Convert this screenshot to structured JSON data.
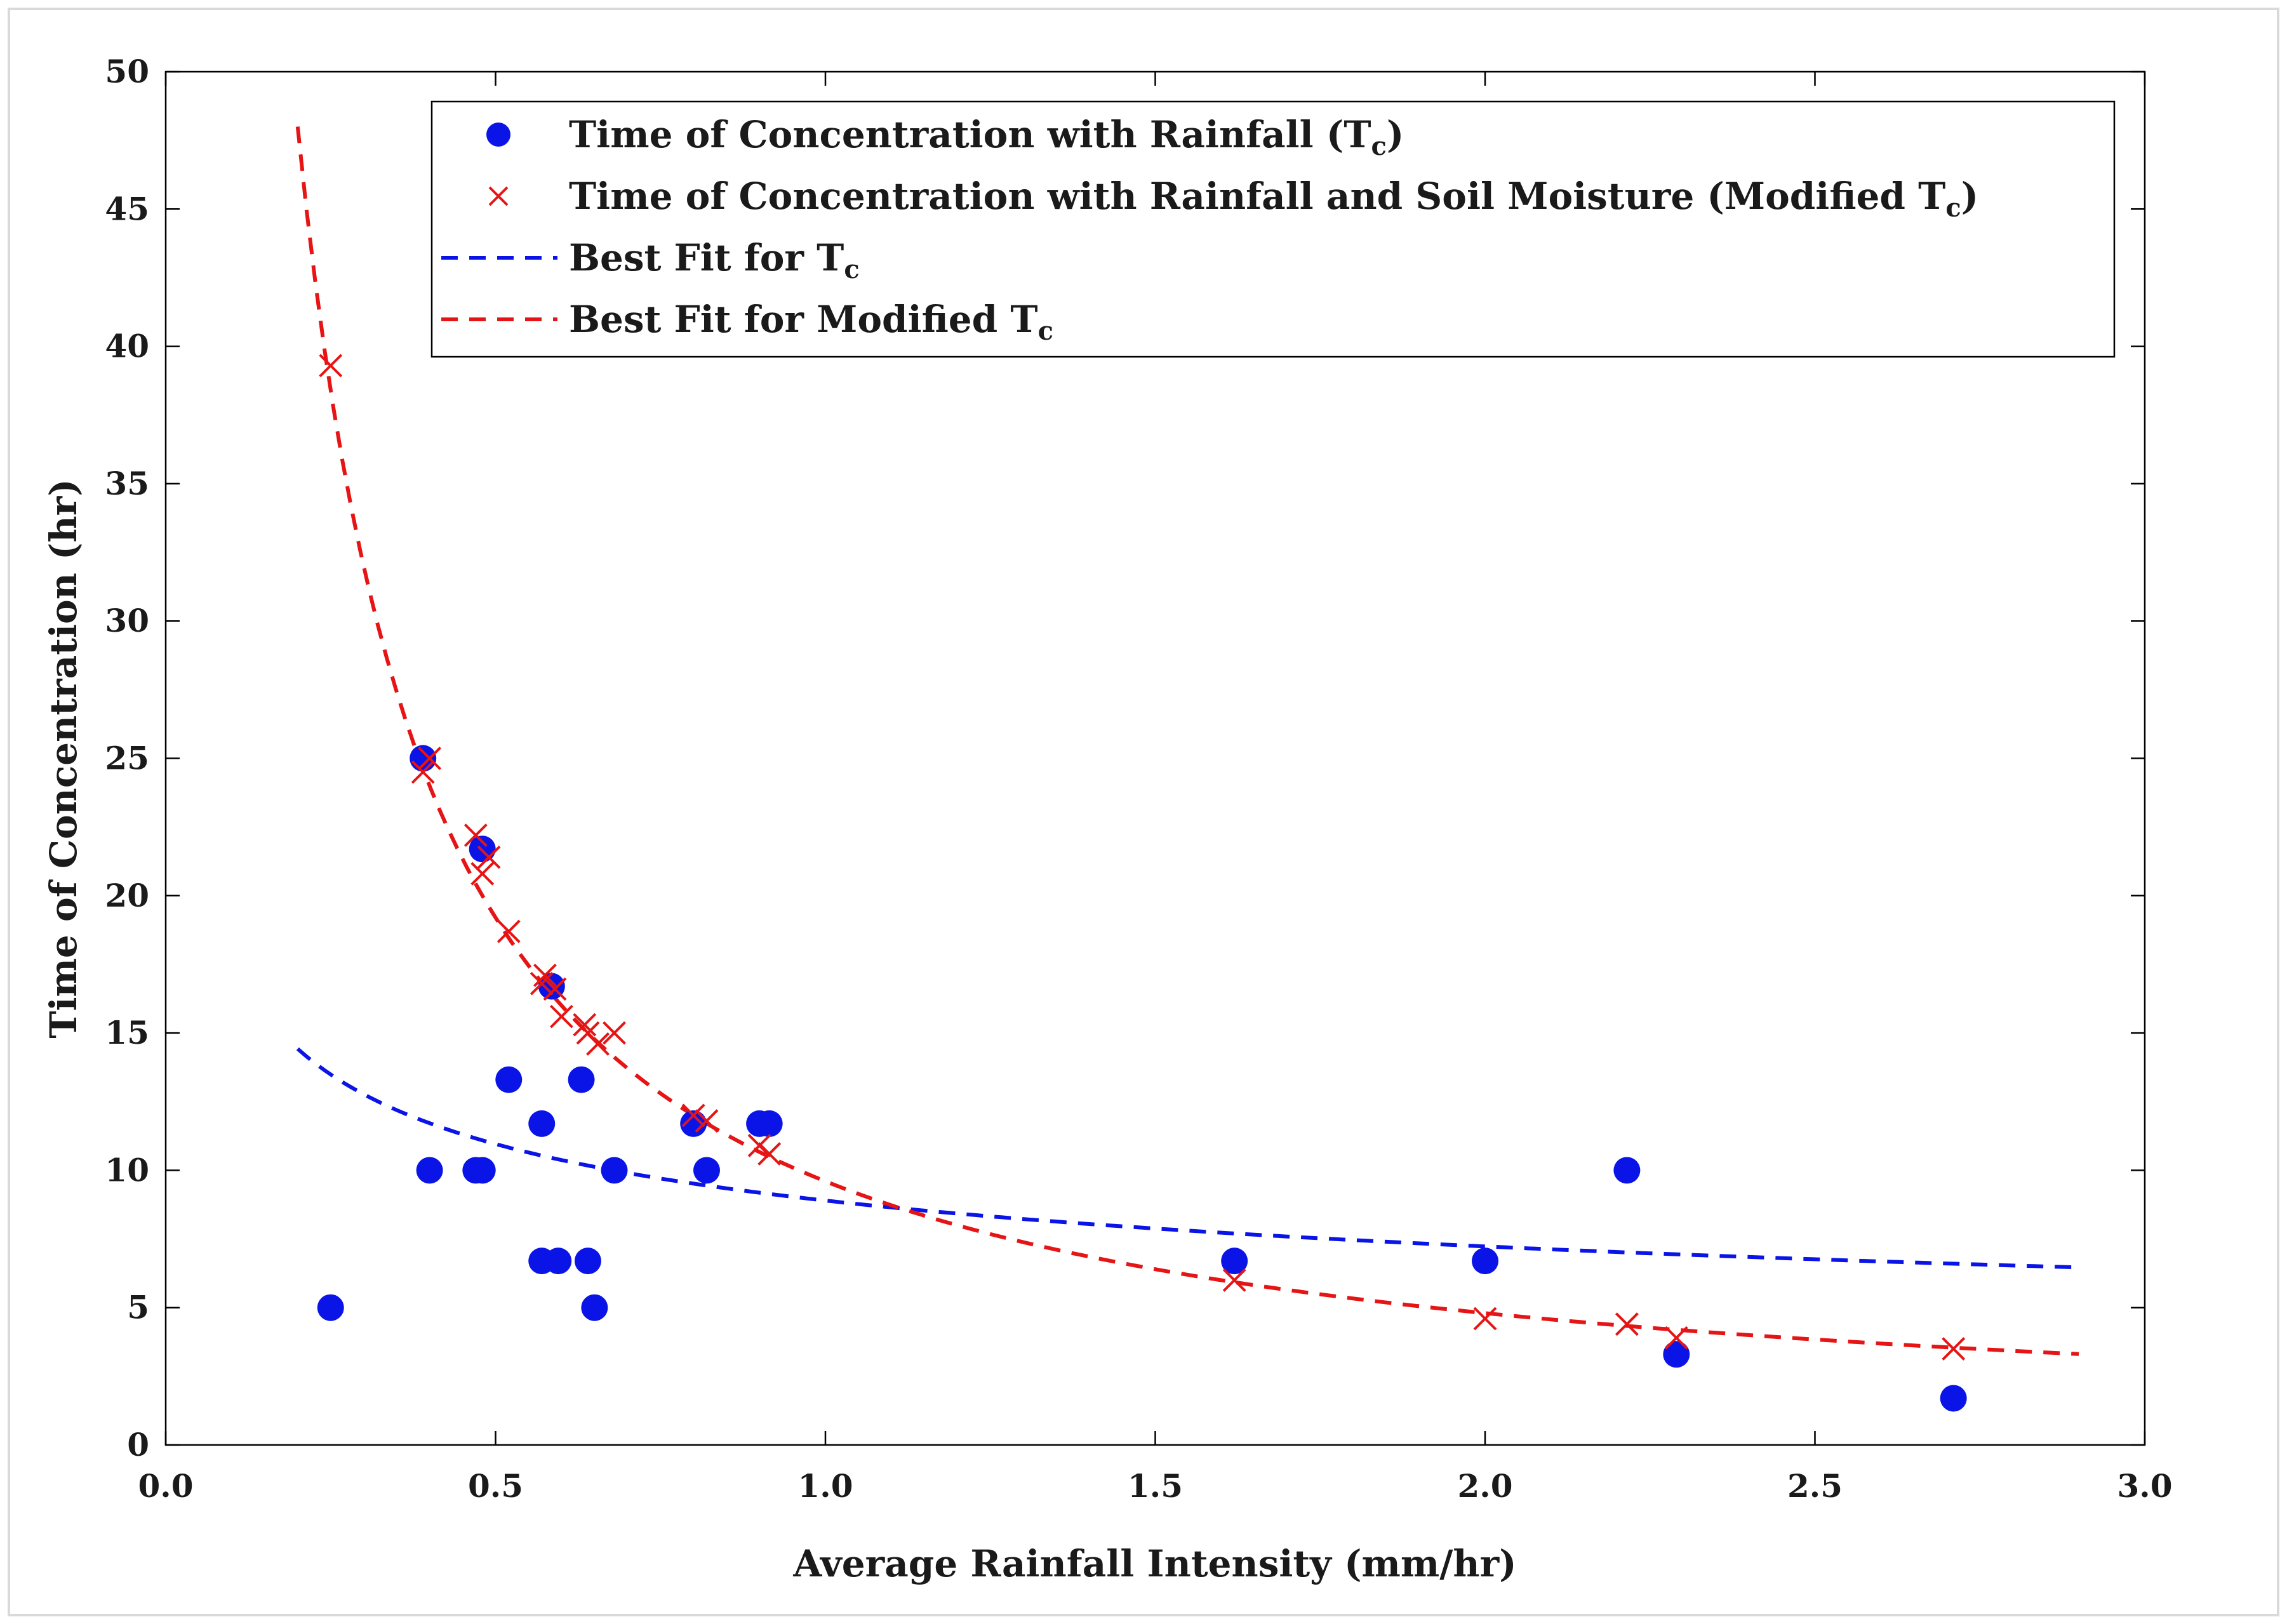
{
  "chart_data": {
    "type": "scatter",
    "title": "",
    "xlabel": "Average Rainfall Intensity (mm/hr)",
    "ylabel": "Time of Concentration (hr)",
    "xlim": [
      0.0,
      3.0
    ],
    "ylim": [
      0,
      50
    ],
    "xticks": [
      "0.0",
      "0.5",
      "1.0",
      "1.5",
      "2.0",
      "2.5",
      "3.0"
    ],
    "yticks": [
      "0",
      "5",
      "10",
      "15",
      "20",
      "25",
      "30",
      "35",
      "40",
      "45",
      "50"
    ],
    "grid": false,
    "legend_position": "top-right",
    "colors": {
      "tc": "#0a14e6",
      "modified": "#e61414"
    },
    "series": [
      {
        "name": "Time of Concentration with Rainfall (Tc)",
        "legend_text": "Time of Concentration with Rainfall (T",
        "legend_sub": "c",
        "legend_suffix": ")",
        "marker": "circle",
        "points": [
          [
            0.25,
            5.0
          ],
          [
            0.39,
            25.0
          ],
          [
            0.4,
            10.0
          ],
          [
            0.47,
            10.0
          ],
          [
            0.48,
            10.0
          ],
          [
            0.48,
            21.7
          ],
          [
            0.52,
            13.3
          ],
          [
            0.57,
            6.7
          ],
          [
            0.57,
            11.7
          ],
          [
            0.585,
            16.7
          ],
          [
            0.595,
            6.7
          ],
          [
            0.63,
            13.3
          ],
          [
            0.64,
            6.7
          ],
          [
            0.65,
            5.0
          ],
          [
            0.68,
            10.0
          ],
          [
            0.8,
            11.7
          ],
          [
            0.82,
            10.0
          ],
          [
            0.9,
            11.7
          ],
          [
            0.915,
            11.7
          ],
          [
            1.62,
            6.7
          ],
          [
            2.0,
            6.7
          ],
          [
            2.215,
            10.0
          ],
          [
            2.29,
            3.3
          ],
          [
            2.71,
            1.7
          ]
        ]
      },
      {
        "name": "Time of Concentration with Rainfall and Soil Moisture (Modified Tc)",
        "legend_text": "Time of Concentration with Rainfall and Soil Moisture (Modified T",
        "legend_sub": "c",
        "legend_suffix": ")",
        "marker": "x",
        "points": [
          [
            0.25,
            39.3
          ],
          [
            0.39,
            24.5
          ],
          [
            0.4,
            25.0
          ],
          [
            0.47,
            22.2
          ],
          [
            0.48,
            20.8
          ],
          [
            0.49,
            21.4
          ],
          [
            0.52,
            18.7
          ],
          [
            0.57,
            16.8
          ],
          [
            0.575,
            17.1
          ],
          [
            0.59,
            16.6
          ],
          [
            0.6,
            15.6
          ],
          [
            0.635,
            15.3
          ],
          [
            0.64,
            15.0
          ],
          [
            0.655,
            14.6
          ],
          [
            0.68,
            15.0
          ],
          [
            0.8,
            12.0
          ],
          [
            0.82,
            11.8
          ],
          [
            0.9,
            10.9
          ],
          [
            0.915,
            10.6
          ],
          [
            1.62,
            6.0
          ],
          [
            2.0,
            4.6
          ],
          [
            2.215,
            4.4
          ],
          [
            2.29,
            3.9
          ],
          [
            2.71,
            3.5
          ]
        ]
      },
      {
        "name": "Best Fit for Tc",
        "legend_text": "Best Fit for T",
        "legend_sub": "c",
        "legend_suffix": "",
        "line": "dashed",
        "model": {
          "form": "power",
          "a": 8.9,
          "b": -0.3,
          "x_range": [
            0.2,
            2.9
          ]
        }
      },
      {
        "name": "Best Fit for Modified Tc",
        "legend_text": "Best Fit for Modified T",
        "legend_sub": "c",
        "legend_suffix": "",
        "line": "dashed",
        "model": {
          "form": "power",
          "a": 9.6,
          "b": -1.0,
          "x_range": [
            0.2,
            2.9
          ]
        }
      }
    ]
  }
}
